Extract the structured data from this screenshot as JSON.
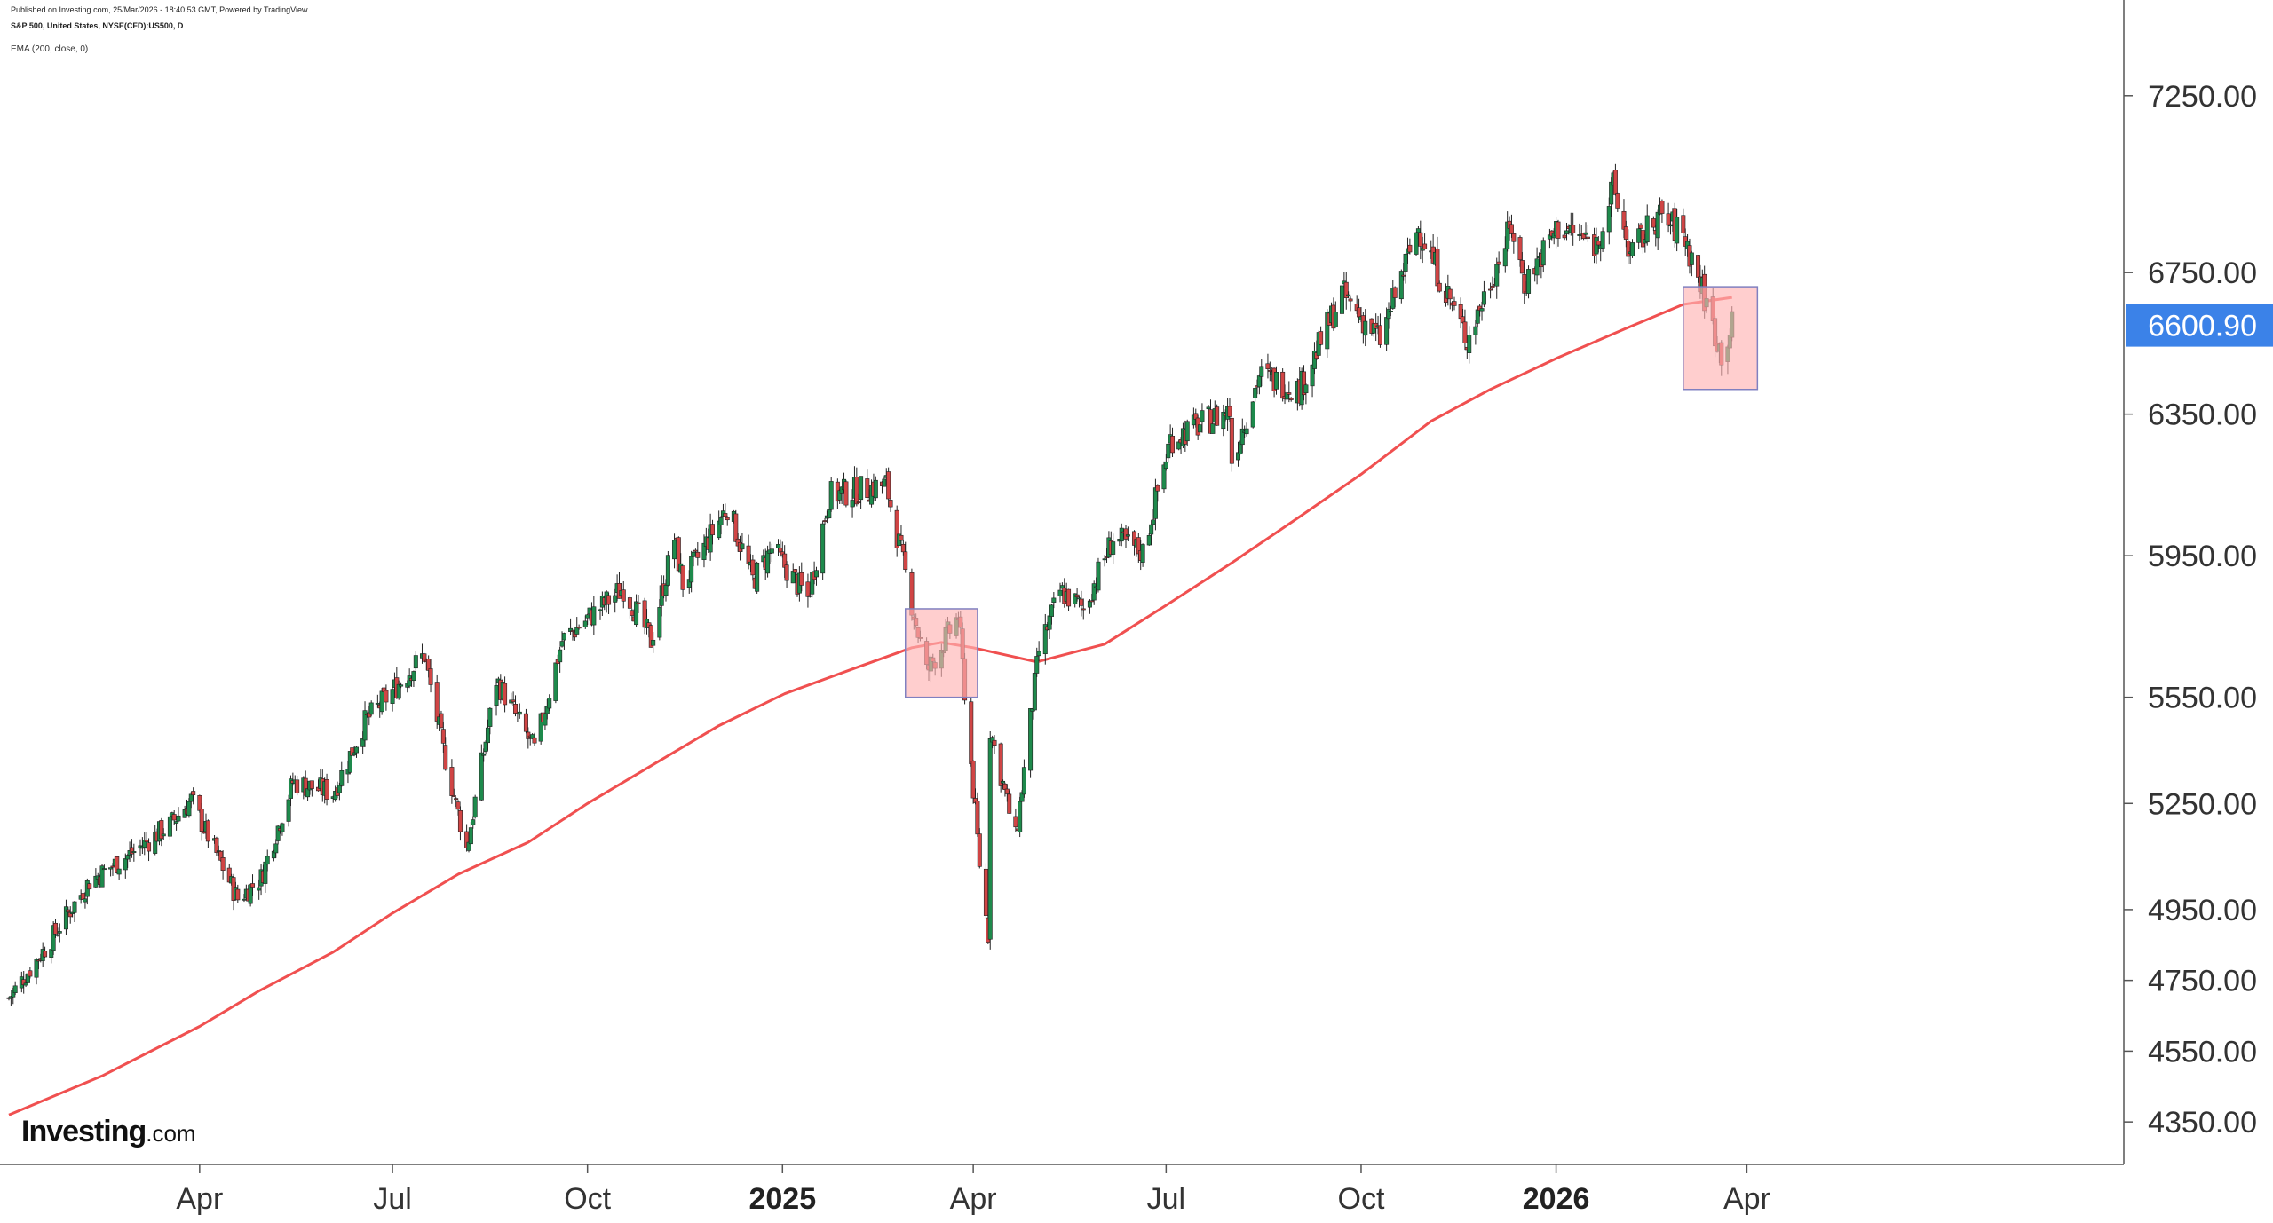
{
  "header": {
    "published": "Published on Investing.com, 25/Mar/2026 - 18:40:53 GMT, Powered by TradingView.",
    "symbol": "S&P 500, United States, NYSE(CFD):US500, D",
    "indicator": "EMA (200, close, 0)"
  },
  "logo": {
    "brand": "Investing",
    "domain": ".com"
  },
  "colors": {
    "up": "#1e8a4c",
    "down": "#d04545",
    "ema": "#f05050",
    "box_fill": "#ffb3b3",
    "box_stroke": "#8080c0",
    "price_label_bg": "#3b82e8",
    "axis": "#555555"
  },
  "chart_data": {
    "type": "candlestick",
    "title": "S&P 500, United States, NYSE(CFD):US500, D",
    "ylim": [
      4230,
      7420
    ],
    "y_ticks": [
      "7250.00",
      "6750.00",
      "6350.00",
      "5950.00",
      "5550.00",
      "5250.00",
      "4950.00",
      "4750.00",
      "4550.00",
      "4350.00"
    ],
    "x_range": [
      "2024-01-02",
      "2026-07-20"
    ],
    "x_ticks": [
      {
        "date": "2024-04-01",
        "label": "Apr",
        "bold": false
      },
      {
        "date": "2024-07-01",
        "label": "Jul",
        "bold": false
      },
      {
        "date": "2024-10-01",
        "label": "Oct",
        "bold": false
      },
      {
        "date": "2025-01-01",
        "label": "2025",
        "bold": true
      },
      {
        "date": "2025-04-01",
        "label": "Apr",
        "bold": false
      },
      {
        "date": "2025-07-01",
        "label": "Jul",
        "bold": false
      },
      {
        "date": "2025-10-01",
        "label": "Oct",
        "bold": false
      },
      {
        "date": "2026-01-01",
        "label": "2026",
        "bold": true
      },
      {
        "date": "2026-04-01",
        "label": "Apr",
        "bold": false
      }
    ],
    "last_price": "6600.90",
    "last_price_value": 6600.9,
    "price_path": [
      [
        "2024-01-02",
        4700
      ],
      [
        "2024-01-19",
        4840
      ],
      [
        "2024-02-09",
        5030
      ],
      [
        "2024-02-29",
        5110
      ],
      [
        "2024-03-18",
        5190
      ],
      [
        "2024-03-28",
        5260
      ],
      [
        "2024-04-19",
        4980
      ],
      [
        "2024-04-30",
        5040
      ],
      [
        "2024-05-15",
        5310
      ],
      [
        "2024-06-03",
        5280
      ],
      [
        "2024-06-18",
        5480
      ],
      [
        "2024-07-16",
        5670
      ],
      [
        "2024-07-25",
        5400
      ],
      [
        "2024-08-05",
        5120
      ],
      [
        "2024-08-19",
        5600
      ],
      [
        "2024-09-06",
        5400
      ],
      [
        "2024-09-19",
        5710
      ],
      [
        "2024-10-18",
        5860
      ],
      [
        "2024-10-31",
        5710
      ],
      [
        "2024-11-11",
        6000
      ],
      [
        "2024-11-15",
        5870
      ],
      [
        "2024-12-06",
        6090
      ],
      [
        "2024-12-18",
        5880
      ],
      [
        "2024-12-27",
        5970
      ],
      [
        "2025-01-13",
        5830
      ],
      [
        "2025-01-23",
        6120
      ],
      [
        "2025-02-19",
        6150
      ],
      [
        "2025-03-10",
        5620
      ],
      [
        "2025-03-25",
        5780
      ],
      [
        "2025-04-04",
        5080
      ],
      [
        "2025-04-08",
        4880
      ],
      [
        "2025-04-09",
        5460
      ],
      [
        "2025-04-21",
        5150
      ],
      [
        "2025-05-02",
        5680
      ],
      [
        "2025-05-12",
        5850
      ],
      [
        "2025-05-23",
        5800
      ],
      [
        "2025-06-06",
        6000
      ],
      [
        "2025-06-20",
        5960
      ],
      [
        "2025-07-03",
        6280
      ],
      [
        "2025-07-31",
        6360
      ],
      [
        "2025-08-01",
        6220
      ],
      [
        "2025-08-14",
        6460
      ],
      [
        "2025-09-02",
        6420
      ],
      [
        "2025-09-22",
        6690
      ],
      [
        "2025-10-10",
        6560
      ],
      [
        "2025-10-28",
        6880
      ],
      [
        "2025-11-20",
        6560
      ],
      [
        "2025-12-11",
        6880
      ],
      [
        "2025-12-17",
        6720
      ],
      [
        "2026-01-02",
        6880
      ],
      [
        "2026-01-20",
        6830
      ],
      [
        "2026-01-28",
        6990
      ],
      [
        "2026-02-05",
        6800
      ],
      [
        "2026-02-18",
        6910
      ],
      [
        "2026-03-02",
        6860
      ],
      [
        "2026-03-10",
        6720
      ],
      [
        "2026-03-20",
        6520
      ],
      [
        "2026-03-25",
        6600.9
      ]
    ],
    "series": [
      {
        "name": "EMA (200, close, 0)",
        "type": "line",
        "points": [
          [
            "2024-01-02",
            4370
          ],
          [
            "2024-02-15",
            4480
          ],
          [
            "2024-04-01",
            4620
          ],
          [
            "2024-04-29",
            4720
          ],
          [
            "2024-06-03",
            4830
          ],
          [
            "2024-07-01",
            4940
          ],
          [
            "2024-08-01",
            5050
          ],
          [
            "2024-09-03",
            5140
          ],
          [
            "2024-10-01",
            5250
          ],
          [
            "2024-11-01",
            5360
          ],
          [
            "2024-12-02",
            5470
          ],
          [
            "2025-01-02",
            5560
          ],
          [
            "2025-02-03",
            5630
          ],
          [
            "2025-03-03",
            5690
          ],
          [
            "2025-03-17",
            5705
          ],
          [
            "2025-04-01",
            5690
          ],
          [
            "2025-05-01",
            5650
          ],
          [
            "2025-06-02",
            5700
          ],
          [
            "2025-07-01",
            5810
          ],
          [
            "2025-08-01",
            5930
          ],
          [
            "2025-09-02",
            6060
          ],
          [
            "2025-10-01",
            6180
          ],
          [
            "2025-11-03",
            6330
          ],
          [
            "2025-12-01",
            6420
          ],
          [
            "2026-01-02",
            6510
          ],
          [
            "2026-02-02",
            6590
          ],
          [
            "2026-03-02",
            6660
          ],
          [
            "2026-03-25",
            6680
          ]
        ]
      }
    ],
    "annotations": [
      {
        "type": "rectangle",
        "x": [
          "2025-02-28",
          "2025-04-03"
        ],
        "y": [
          5550,
          5800
        ]
      },
      {
        "type": "rectangle",
        "x": [
          "2026-03-02",
          "2026-04-06"
        ],
        "y": [
          6420,
          6710
        ]
      }
    ]
  }
}
